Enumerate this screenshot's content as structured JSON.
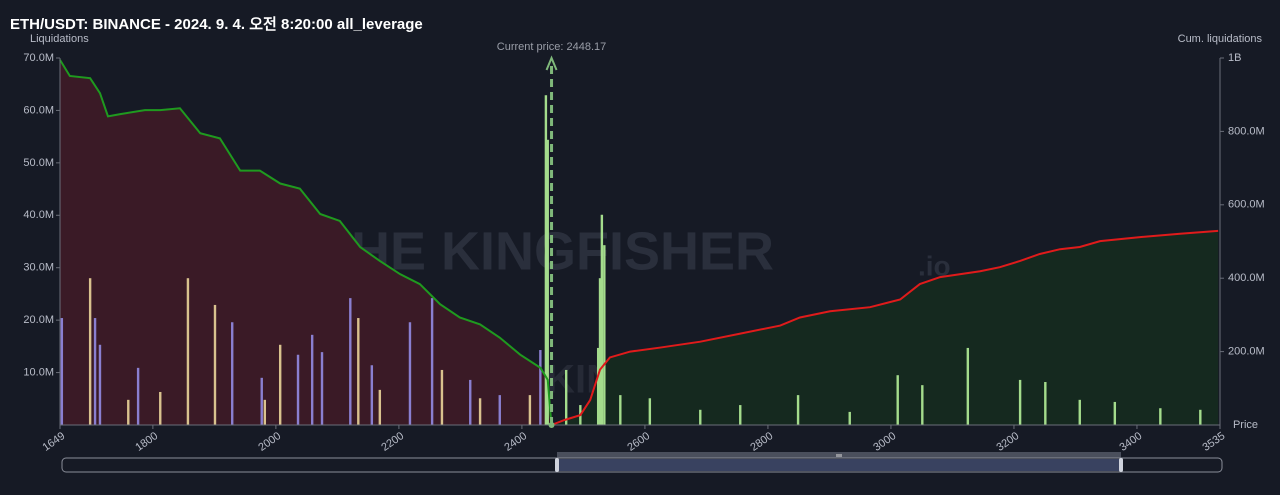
{
  "chart_data": {
    "type": "liquidation",
    "title": "ETH/USDT: BINANCE - 2024. 9. 4. 오전 8:20:00 all_leverage",
    "y_label": "Liquidations",
    "y2_label": "Cum. liquidations",
    "x_label": "Price",
    "watermark": "THE KINGFISHER",
    "watermark_suffix": ".io",
    "current_price": {
      "value": 2448.17,
      "label": "Current price: 2448.17"
    },
    "xlim": [
      1649,
      3535
    ],
    "xticks": [
      1649,
      1800,
      2000,
      2200,
      2400,
      2600,
      2800,
      3000,
      3200,
      3400,
      3535
    ],
    "ylim": [
      0,
      70000000
    ],
    "yticks": [
      {
        "value": 10000000,
        "label": "10.0M"
      },
      {
        "value": 20000000,
        "label": "20.0M"
      },
      {
        "value": 30000000,
        "label": "30.0M"
      },
      {
        "value": 40000000,
        "label": "40.0M"
      },
      {
        "value": 50000000,
        "label": "50.0M"
      },
      {
        "value": 60000000,
        "label": "60.0M"
      },
      {
        "value": 70000000,
        "label": "70.0M"
      }
    ],
    "y2lim": [
      0,
      1000000000
    ],
    "y2ticks": [
      {
        "value": 200000000,
        "label": "200.0M"
      },
      {
        "value": 400000000,
        "label": "400.0M"
      },
      {
        "value": 600000000,
        "label": "600.0M"
      },
      {
        "value": 800000000,
        "label": "800.0M"
      },
      {
        "value": 1000000000,
        "label": "1B"
      }
    ],
    "series": [
      {
        "type": "bar",
        "color": "#8a7fd0",
        "x": [
          1652,
          1706,
          1714,
          1776,
          1929,
          1977,
          2036,
          2059,
          2075,
          2121,
          2156,
          2218,
          2254,
          2316,
          2364,
          2430
        ],
        "values": [
          20400000,
          20400000,
          15300000,
          10900000,
          19600000,
          9000000,
          13400000,
          17200000,
          13900000,
          24200000,
          11400000,
          19600000,
          24200000,
          8600000,
          5700000,
          14300000
        ]
      },
      {
        "type": "bar",
        "color": "#d9c28e",
        "x": [
          1698,
          1760,
          1812,
          1857,
          1901,
          1982,
          2007,
          2134,
          2169,
          2270,
          2332,
          2413
        ],
        "values": [
          28000000,
          4800000,
          6300000,
          28000000,
          22900000,
          4800000,
          15300000,
          20400000,
          6700000,
          10500000,
          5100000,
          5700000
        ]
      },
      {
        "type": "bar",
        "color": "#a4dc8c",
        "x": [
          2439,
          2442,
          2472,
          2495,
          2524,
          2527,
          2530,
          2534,
          2560,
          2608,
          2690,
          2755,
          2849,
          2933,
          3011,
          3051,
          3125,
          3210,
          3251,
          3307,
          3364,
          3438,
          3503
        ],
        "values": [
          62900000,
          54400000,
          10500000,
          3800000,
          14700000,
          28000000,
          40100000,
          34300000,
          5700000,
          5100000,
          2900000,
          3800000,
          5700000,
          2500000,
          9500000,
          7600000,
          14700000,
          8600000,
          8200000,
          4800000,
          4400000,
          3200000,
          2900000
        ]
      },
      {
        "type": "area",
        "axis": "y2",
        "color": "#1f9a1f",
        "fill": "#3a1a26",
        "x": [
          1649,
          1665,
          1698,
          1714,
          1727,
          1747,
          1787,
          1812,
          1844,
          1860,
          1877,
          1909,
          1942,
          1974,
          2007,
          2039,
          2072,
          2104,
          2137,
          2169,
          2202,
          2234,
          2267,
          2299,
          2332,
          2364,
          2397,
          2430,
          2442,
          2448
        ],
        "values": [
          995000000,
          951000000,
          945000000,
          904000000,
          841000000,
          847000000,
          858000000,
          858000000,
          863000000,
          830000000,
          795000000,
          781000000,
          693000000,
          693000000,
          658000000,
          644000000,
          575000000,
          556000000,
          485000000,
          447000000,
          411000000,
          384000000,
          329000000,
          293000000,
          274000000,
          238000000,
          192000000,
          156000000,
          123000000,
          0
        ]
      },
      {
        "type": "area",
        "axis": "y2",
        "color": "#e01b1b",
        "fill": "#15291f",
        "x": [
          2448,
          2470,
          2495,
          2511,
          2527,
          2543,
          2576,
          2625,
          2690,
          2755,
          2820,
          2852,
          2901,
          2966,
          3015,
          3047,
          3080,
          3145,
          3177,
          3210,
          3242,
          3275,
          3307,
          3340,
          3405,
          3470,
          3532
        ],
        "values": [
          0,
          14000000,
          27000000,
          68000000,
          151000000,
          184000000,
          200000000,
          211000000,
          227000000,
          249000000,
          271000000,
          293000000,
          310000000,
          321000000,
          342000000,
          384000000,
          403000000,
          419000000,
          430000000,
          447000000,
          466000000,
          479000000,
          485000000,
          501000000,
          512000000,
          521000000,
          529000000
        ]
      }
    ]
  }
}
